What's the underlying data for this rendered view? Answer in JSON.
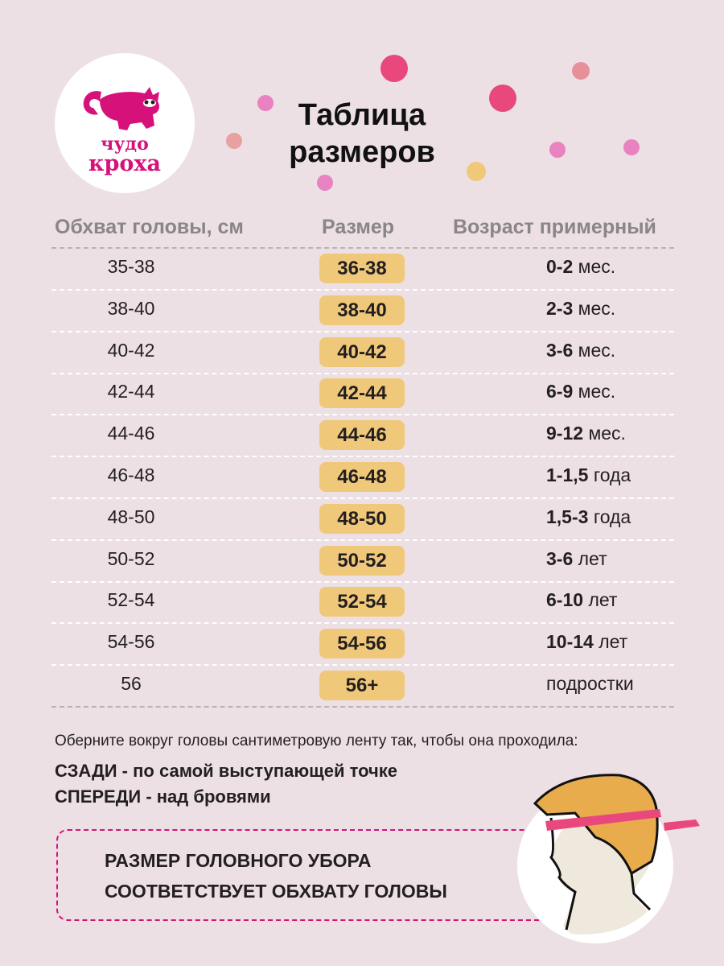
{
  "brand": {
    "name_line1": "чудо",
    "name_line2": "кроха",
    "registered": "®",
    "color": "#d6127a"
  },
  "title": {
    "line1": "Таблица",
    "line2": "размеров"
  },
  "table": {
    "headers": [
      "Обхват головы, см",
      "Размер",
      "Возраст примерный"
    ],
    "badge_color": "#f0c87a",
    "rows": [
      {
        "girth": "35-38",
        "size": "36-38",
        "age_bold": "0-2",
        "age_unit": "мес."
      },
      {
        "girth": "38-40",
        "size": "38-40",
        "age_bold": "2-3",
        "age_unit": "мес."
      },
      {
        "girth": "40-42",
        "size": "40-42",
        "age_bold": "3-6",
        "age_unit": "мес."
      },
      {
        "girth": "42-44",
        "size": "42-44",
        "age_bold": "6-9",
        "age_unit": "мес."
      },
      {
        "girth": "44-46",
        "size": "44-46",
        "age_bold": "9-12",
        "age_unit": "мес."
      },
      {
        "girth": "46-48",
        "size": "46-48",
        "age_bold": "1-1,5",
        "age_unit": "года"
      },
      {
        "girth": "48-50",
        "size": "48-50",
        "age_bold": "1,5-3",
        "age_unit": "года"
      },
      {
        "girth": "50-52",
        "size": "50-52",
        "age_bold": "3-6",
        "age_unit": "лет"
      },
      {
        "girth": "52-54",
        "size": "52-54",
        "age_bold": "6-10",
        "age_unit": "лет"
      },
      {
        "girth": "54-56",
        "size": "54-56",
        "age_bold": "10-14",
        "age_unit": "лет"
      },
      {
        "girth": "56",
        "size": "56+",
        "age_bold": "",
        "age_unit": "подростки"
      }
    ]
  },
  "instructions": {
    "intro": "Оберните вокруг головы сантиметровую ленту так, чтобы она проходила:",
    "back": "СЗАДИ - по самой выступающей точке",
    "front": "СПЕРЕДИ - над бровями"
  },
  "note": {
    "line1": "РАЗМЕР ГОЛОВНОГО УБОРА",
    "line2": "СООТВЕТСТВУЕТ ОБХВАТУ ГОЛОВЫ"
  }
}
